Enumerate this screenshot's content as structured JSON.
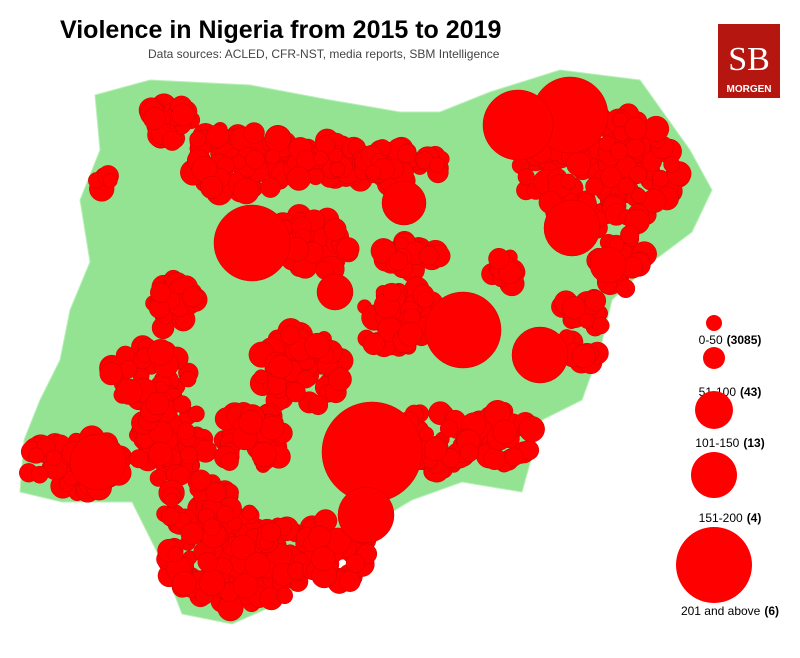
{
  "title": "Violence in Nigeria from 2015 to 2019",
  "subtitle": "Data sources: ACLED, CFR-NST, media reports, SBM Intelligence",
  "logo": {
    "mark": "SB",
    "name": "MORGEN"
  },
  "legend": [
    {
      "range": "0-50",
      "count": "(3085)"
    },
    {
      "range": "51-100",
      "count": "(43)"
    },
    {
      "range": "101-150",
      "count": "(13)"
    },
    {
      "range": "151-200",
      "count": "(4)"
    },
    {
      "range": "201 and above",
      "count": "(6)"
    }
  ]
}
